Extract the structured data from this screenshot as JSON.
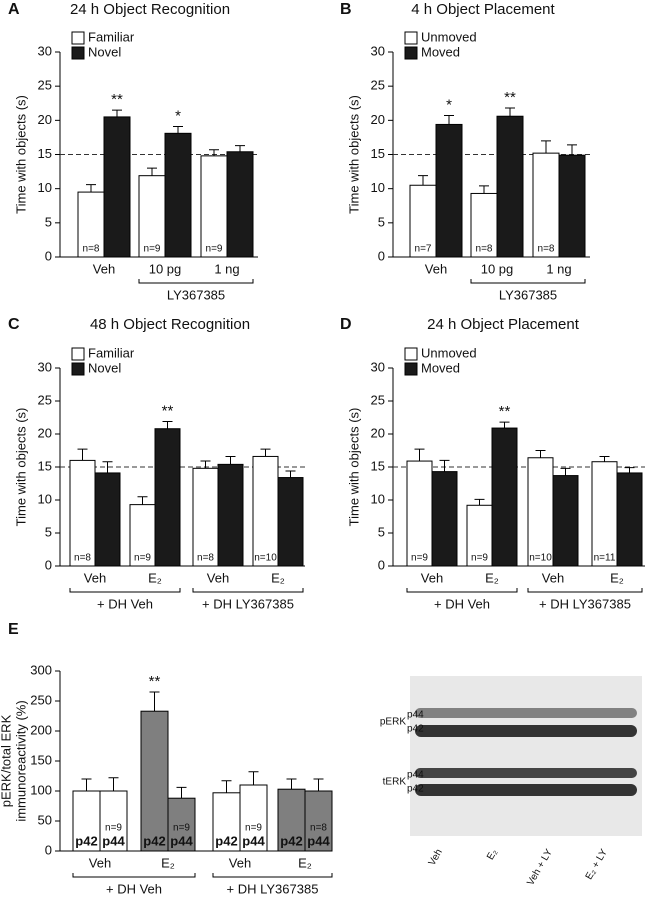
{
  "chart_data": [
    {
      "type": "bar",
      "panel": "A",
      "title": "24 h Object Recognition",
      "y_label": [
        "Time with objects (s)"
      ],
      "categories": [
        "Veh",
        "10 pg",
        "1 ng"
      ],
      "series": [
        {
          "name": "Familiar",
          "color": "#ffffff",
          "values": [
            9.5,
            11.9,
            14.8
          ],
          "errors": [
            1.1,
            1.1,
            0.9
          ],
          "significance": [
            null,
            null,
            null
          ],
          "n_labels": [
            "n=8",
            "n=9",
            "n=9"
          ]
        },
        {
          "name": "Novel",
          "color": "#1a1a1a",
          "values": [
            20.5,
            18.1,
            15.4
          ],
          "errors": [
            1.0,
            1.0,
            0.9
          ],
          "significance": [
            "**",
            "*",
            null
          ]
        }
      ],
      "group_labels": [
        "LY367385"
      ],
      "ylim": [
        0,
        30
      ],
      "yticks": [
        0,
        5,
        10,
        15,
        20,
        25,
        30
      ],
      "reference_line": 15,
      "legend": "upper left"
    },
    {
      "type": "bar",
      "panel": "B",
      "title": "4 h Object Placement",
      "y_label": [
        "Time with objects (s)"
      ],
      "categories": [
        "Veh",
        "10 pg",
        "1 ng"
      ],
      "series": [
        {
          "name": "Unmoved",
          "color": "#ffffff",
          "values": [
            10.5,
            9.3,
            15.2
          ],
          "errors": [
            1.4,
            1.1,
            1.8
          ],
          "significance": [
            null,
            null,
            null
          ],
          "n_labels": [
            "n=7",
            "n=8",
            "n=8"
          ]
        },
        {
          "name": "Moved",
          "color": "#1a1a1a",
          "values": [
            19.4,
            20.6,
            14.9
          ],
          "errors": [
            1.3,
            1.2,
            1.5
          ],
          "significance": [
            "*",
            "**",
            null
          ]
        }
      ],
      "group_labels": [
        "LY367385"
      ],
      "ylim": [
        0,
        30
      ],
      "yticks": [
        0,
        5,
        10,
        15,
        20,
        25,
        30
      ],
      "reference_line": 15,
      "legend": "upper left"
    },
    {
      "type": "bar",
      "panel": "C",
      "title": "48 h Object Recognition",
      "y_label": [
        "Time with objects (s)"
      ],
      "categories": [
        "Veh",
        "E₂",
        "Veh",
        "E₂"
      ],
      "series": [
        {
          "name": "Familiar",
          "color": "#ffffff",
          "values": [
            16.0,
            9.3,
            14.8,
            16.6
          ],
          "errors": [
            1.7,
            1.2,
            1.1,
            1.1
          ],
          "significance": [
            null,
            null,
            null,
            null
          ],
          "n_labels": [
            "n=8",
            "n=9",
            "n=8",
            "n=10"
          ]
        },
        {
          "name": "Novel",
          "color": "#1a1a1a",
          "values": [
            14.1,
            20.8,
            15.4,
            13.4
          ],
          "errors": [
            1.7,
            1.1,
            1.2,
            1.0
          ],
          "significance": [
            null,
            "**",
            null,
            null
          ]
        }
      ],
      "group_labels": [
        "+ DH Veh",
        "+ DH LY367385"
      ],
      "ylim": [
        0,
        30
      ],
      "yticks": [
        0,
        5,
        10,
        15,
        20,
        25,
        30
      ],
      "reference_line": 15,
      "legend": "upper left"
    },
    {
      "type": "bar",
      "panel": "D",
      "title": "24 h Object Placement",
      "y_label": [
        "Time with objects (s)"
      ],
      "categories": [
        "Veh",
        "E₂",
        "Veh",
        "E₂"
      ],
      "series": [
        {
          "name": "Unmoved",
          "color": "#ffffff",
          "values": [
            15.9,
            9.2,
            16.4,
            15.8
          ],
          "errors": [
            1.8,
            0.9,
            1.1,
            0.8
          ],
          "significance": [
            null,
            null,
            null,
            null
          ],
          "n_labels": [
            "n=9",
            "n=9",
            "n=10",
            "n=11"
          ]
        },
        {
          "name": "Moved",
          "color": "#1a1a1a",
          "values": [
            14.3,
            20.9,
            13.7,
            14.1
          ],
          "errors": [
            1.7,
            0.9,
            1.1,
            0.8
          ],
          "significance": [
            null,
            "**",
            null,
            null
          ]
        }
      ],
      "group_labels": [
        "+ DH Veh",
        "+ DH LY367385"
      ],
      "ylim": [
        0,
        30
      ],
      "yticks": [
        0,
        5,
        10,
        15,
        20,
        25,
        30
      ],
      "reference_line": 15,
      "legend": "upper left"
    },
    {
      "type": "bar",
      "panel": "E",
      "y_label": [
        "pERK/total ERK",
        "immunoreactivity (%)"
      ],
      "categories": [
        "Veh",
        "E₂",
        "Veh",
        "E₂"
      ],
      "bar_colors": [
        "#ffffff",
        "#7f7f7f",
        "#ffffff",
        "#7f7f7f"
      ],
      "series": [
        {
          "name": "p42",
          "values": [
            100,
            233,
            97,
            103
          ],
          "errors": [
            20,
            32,
            20,
            17
          ],
          "significance": [
            null,
            "**",
            null,
            null
          ]
        },
        {
          "name": "p44",
          "values": [
            100,
            88,
            110,
            100
          ],
          "errors": [
            22,
            18,
            22,
            20
          ],
          "significance": [
            null,
            null,
            null,
            null
          ],
          "n_labels": [
            "n=9",
            "n=9",
            "n=9",
            "n=8"
          ]
        }
      ],
      "group_labels": [
        "+ DH Veh",
        "+ DH LY367385"
      ],
      "ylim": [
        0,
        300
      ],
      "yticks": [
        0,
        50,
        100,
        150,
        200,
        250,
        300
      ]
    }
  ],
  "blot": {
    "rows": [
      {
        "label": "pERK",
        "upper": "p44",
        "lower": "p42"
      },
      {
        "label": "tERK",
        "upper": "p44",
        "lower": "p42"
      }
    ],
    "lanes": [
      "Veh",
      "E₂",
      "Veh + LY",
      "E₂ + LY"
    ]
  }
}
